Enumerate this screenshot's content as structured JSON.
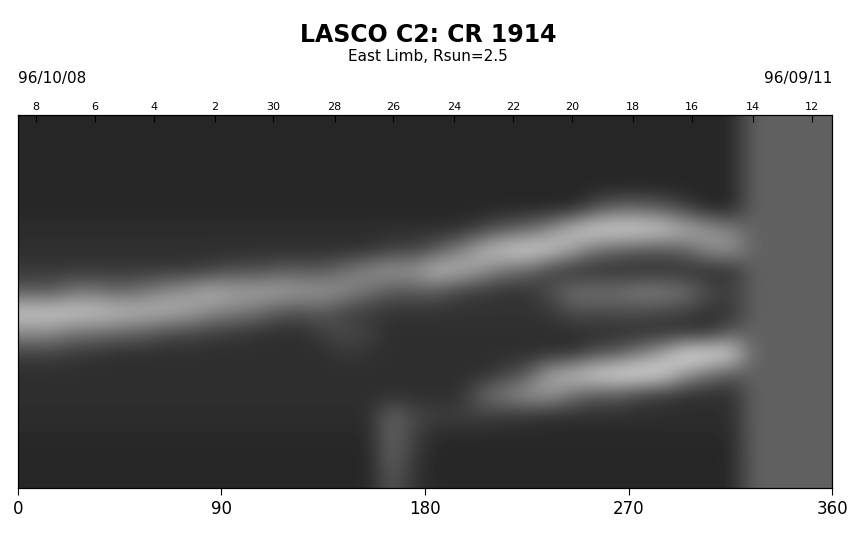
{
  "chart_data": {
    "type": "heatmap",
    "title": "LASCO C2: CR 1914",
    "subtitle": "East Limb, Rsun=2.5",
    "annotations": [
      "96/10/08",
      "96/09/11"
    ],
    "xlim": [
      0,
      360
    ],
    "xticks": [
      0,
      90,
      180,
      270,
      360
    ],
    "ylim": [
      -90,
      90
    ],
    "tick_labels": "x",
    "x2ticks": [
      {
        "value": 8,
        "label": "8"
      },
      {
        "value": 34,
        "label": "6"
      },
      {
        "value": 60,
        "label": "4"
      },
      {
        "value": 87,
        "label": "2"
      },
      {
        "value": 113,
        "label": "30"
      },
      {
        "value": 140,
        "label": "28"
      },
      {
        "value": 166,
        "label": "26"
      },
      {
        "value": 193,
        "label": "24"
      },
      {
        "value": 219,
        "label": "22"
      },
      {
        "value": 245,
        "label": "20"
      },
      {
        "value": 272,
        "label": "18"
      },
      {
        "value": 298,
        "label": "16"
      },
      {
        "value": 325,
        "label": "14"
      },
      {
        "value": 351,
        "label": "12"
      }
    ],
    "color": "gray",
    "color_range": [
      0,
      100
    ],
    "cells": [
      [
        15,
        15,
        15,
        15,
        15,
        15,
        15,
        15,
        15,
        15,
        15,
        15,
        15,
        15,
        15,
        15,
        15,
        15,
        15,
        15,
        15,
        15,
        15,
        15,
        15,
        15,
        15,
        15,
        15,
        15,
        15,
        15,
        38,
        38,
        38,
        38
      ],
      [
        15,
        15,
        15,
        15,
        15,
        15,
        15,
        15,
        15,
        15,
        15,
        15,
        15,
        15,
        15,
        15,
        15,
        15,
        15,
        15,
        15,
        15,
        15,
        15,
        15,
        15,
        15,
        15,
        15,
        15,
        15,
        15,
        38,
        38,
        38,
        38
      ],
      [
        15,
        15,
        15,
        15,
        15,
        15,
        15,
        15,
        15,
        15,
        15,
        15,
        15,
        15,
        15,
        15,
        15,
        15,
        15,
        15,
        15,
        15,
        15,
        15,
        15,
        15,
        15,
        15,
        15,
        15,
        15,
        15,
        38,
        38,
        38,
        38
      ],
      [
        15,
        15,
        15,
        15,
        15,
        15,
        15,
        15,
        15,
        15,
        15,
        15,
        15,
        15,
        15,
        15,
        15,
        15,
        15,
        15,
        15,
        15,
        15,
        15,
        15,
        15,
        15,
        15,
        15,
        15,
        15,
        15,
        38,
        38,
        38,
        38
      ],
      [
        15,
        15,
        15,
        15,
        15,
        15,
        15,
        15,
        15,
        15,
        15,
        15,
        15,
        15,
        15,
        15,
        15,
        15,
        15,
        15,
        15,
        15,
        15,
        15,
        15,
        30,
        40,
        40,
        35,
        25,
        15,
        15,
        38,
        38,
        38,
        38
      ],
      [
        18,
        18,
        18,
        18,
        18,
        18,
        18,
        18,
        18,
        18,
        18,
        18,
        18,
        18,
        18,
        18,
        18,
        18,
        18,
        18,
        25,
        35,
        40,
        55,
        75,
        85,
        85,
        85,
        80,
        70,
        60,
        50,
        38,
        38,
        38,
        38
      ],
      [
        18,
        18,
        18,
        18,
        18,
        18,
        18,
        18,
        18,
        18,
        18,
        18,
        18,
        18,
        18,
        18,
        25,
        25,
        35,
        50,
        70,
        80,
        85,
        80,
        65,
        45,
        40,
        35,
        35,
        40,
        55,
        60,
        38,
        38,
        38,
        38
      ],
      [
        22,
        22,
        22,
        22,
        22,
        22,
        22,
        22,
        25,
        30,
        30,
        35,
        35,
        35,
        45,
        55,
        60,
        60,
        75,
        70,
        60,
        45,
        40,
        25,
        18,
        18,
        18,
        18,
        18,
        18,
        18,
        18,
        38,
        38,
        38,
        38
      ],
      [
        35,
        35,
        45,
        45,
        40,
        45,
        55,
        60,
        70,
        65,
        65,
        65,
        62,
        60,
        55,
        45,
        35,
        35,
        35,
        25,
        22,
        20,
        20,
        30,
        45,
        45,
        45,
        50,
        50,
        45,
        30,
        25,
        38,
        38,
        38,
        38
      ],
      [
        80,
        80,
        80,
        78,
        75,
        72,
        70,
        65,
        55,
        50,
        45,
        35,
        32,
        35,
        25,
        22,
        20,
        20,
        20,
        20,
        20,
        20,
        20,
        22,
        30,
        30,
        30,
        30,
        28,
        25,
        20,
        20,
        38,
        38,
        38,
        38
      ],
      [
        55,
        55,
        45,
        45,
        40,
        38,
        30,
        28,
        25,
        22,
        20,
        18,
        18,
        25,
        30,
        25,
        18,
        18,
        18,
        18,
        18,
        18,
        18,
        18,
        18,
        18,
        18,
        18,
        18,
        18,
        18,
        35,
        38,
        38,
        38,
        38
      ],
      [
        25,
        25,
        22,
        20,
        18,
        18,
        18,
        18,
        18,
        18,
        18,
        18,
        18,
        18,
        22,
        20,
        18,
        18,
        18,
        18,
        18,
        18,
        18,
        18,
        18,
        30,
        35,
        50,
        65,
        90,
        90,
        85,
        38,
        38,
        38,
        38
      ],
      [
        18,
        18,
        18,
        18,
        18,
        18,
        18,
        18,
        18,
        18,
        18,
        18,
        18,
        18,
        18,
        18,
        18,
        18,
        18,
        18,
        18,
        25,
        35,
        65,
        75,
        85,
        90,
        90,
        85,
        60,
        45,
        35,
        38,
        38,
        38,
        38
      ],
      [
        18,
        18,
        18,
        18,
        18,
        18,
        18,
        18,
        18,
        18,
        18,
        18,
        18,
        18,
        18,
        18,
        18,
        18,
        18,
        18,
        40,
        50,
        60,
        60,
        45,
        35,
        35,
        25,
        22,
        18,
        18,
        18,
        38,
        38,
        38,
        38
      ],
      [
        18,
        18,
        18,
        18,
        18,
        18,
        18,
        18,
        18,
        18,
        18,
        18,
        18,
        18,
        18,
        18,
        40,
        28,
        25,
        25,
        25,
        22,
        20,
        18,
        18,
        18,
        18,
        18,
        18,
        18,
        18,
        18,
        38,
        38,
        38,
        38
      ],
      [
        16,
        16,
        16,
        16,
        16,
        16,
        16,
        16,
        16,
        16,
        16,
        16,
        16,
        16,
        16,
        16,
        40,
        25,
        16,
        16,
        16,
        16,
        16,
        16,
        16,
        16,
        16,
        16,
        16,
        16,
        16,
        16,
        38,
        38,
        38,
        38
      ],
      [
        15,
        15,
        15,
        15,
        15,
        15,
        15,
        15,
        15,
        15,
        15,
        15,
        15,
        15,
        15,
        15,
        40,
        22,
        15,
        15,
        15,
        15,
        15,
        15,
        15,
        15,
        15,
        15,
        15,
        15,
        15,
        15,
        38,
        38,
        38,
        38
      ],
      [
        15,
        15,
        15,
        15,
        15,
        15,
        15,
        15,
        15,
        15,
        15,
        15,
        15,
        15,
        15,
        15,
        35,
        20,
        15,
        15,
        15,
        15,
        15,
        15,
        15,
        15,
        15,
        15,
        15,
        15,
        15,
        15,
        38,
        38,
        38,
        38
      ]
    ]
  }
}
